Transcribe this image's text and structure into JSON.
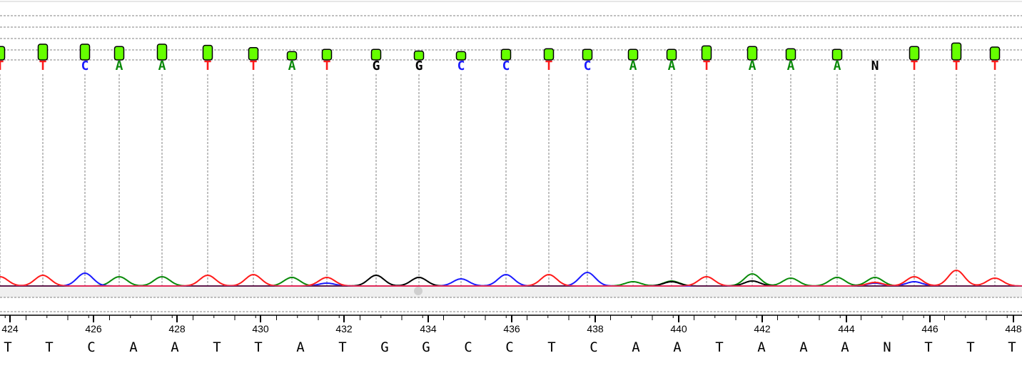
{
  "app": {
    "view": "Sanger trace chromatogram"
  },
  "colors": {
    "A": "#0a8a0a",
    "C": "#1a1aff",
    "G": "#000000",
    "T": "#ff1a1a",
    "N": "#000000",
    "quality_fill": "#66ff00",
    "quality_stroke": "#000000",
    "guide_line": "#808080",
    "ruler_band": "#efefef"
  },
  "base_calls": [
    {
      "base": "T",
      "quality": 0.8
    },
    {
      "base": "T",
      "quality": 1.0
    },
    {
      "base": "C",
      "quality": 1.0
    },
    {
      "base": "A",
      "quality": 0.8
    },
    {
      "base": "A",
      "quality": 1.0
    },
    {
      "base": "T",
      "quality": 0.9
    },
    {
      "base": "T",
      "quality": 0.7
    },
    {
      "base": "A",
      "quality": 0.35
    },
    {
      "base": "T",
      "quality": 0.55
    },
    {
      "base": "G",
      "quality": 0.55
    },
    {
      "base": "G",
      "quality": 0.4
    },
    {
      "base": "C",
      "quality": 0.35
    },
    {
      "base": "C",
      "quality": 0.55
    },
    {
      "base": "T",
      "quality": 0.6
    },
    {
      "base": "C",
      "quality": 0.55
    },
    {
      "base": "A",
      "quality": 0.55
    },
    {
      "base": "A",
      "quality": 0.55
    },
    {
      "base": "T",
      "quality": 0.85
    },
    {
      "base": "A",
      "quality": 0.8
    },
    {
      "base": "A",
      "quality": 0.6
    },
    {
      "base": "A",
      "quality": 0.55
    },
    {
      "base": "N",
      "quality": 0
    },
    {
      "base": "T",
      "quality": 0.8
    },
    {
      "base": "T",
      "quality": 1.1
    },
    {
      "base": "T",
      "quality": 0.75
    }
  ],
  "ruler": {
    "ticks": [
      "424",
      "426",
      "428",
      "430",
      "432",
      "434",
      "436",
      "438",
      "440",
      "442",
      "444",
      "446",
      "448"
    ]
  },
  "sequence": [
    "T",
    "T",
    "C",
    "A",
    "A",
    "T",
    "T",
    "A",
    "T",
    "G",
    "G",
    "C",
    "C",
    "T",
    "C",
    "A",
    "A",
    "T",
    "A",
    "A",
    "A",
    "N",
    "T",
    "T",
    "T"
  ]
}
